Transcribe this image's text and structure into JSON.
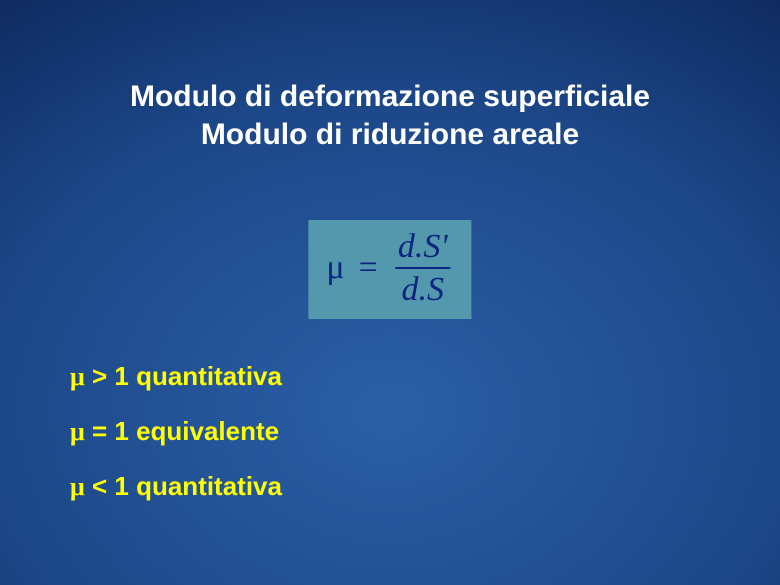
{
  "colors": {
    "background_center": "#2b5fa6",
    "background_mid": "#1c4788",
    "background_outer": "#0b2356",
    "background_edge": "#041235",
    "title_text": "#ffffff",
    "bullet_text": "#ffff00",
    "formula_bg": "#5498ad",
    "formula_text": "#0b2480"
  },
  "title": {
    "line1": "Modulo di deformazione superficiale",
    "line2": "Modulo di riduzione areale",
    "fontsize": 30
  },
  "formula": {
    "lhs_symbol": "μ",
    "equals": "=",
    "numerator": "d.S'",
    "denominator": "d.S",
    "fontsize": 34
  },
  "bullets": {
    "items": [
      {
        "symbol": "μ",
        "text": " > 1 quantitativa"
      },
      {
        "symbol": "μ",
        "text": " = 1 equivalente"
      },
      {
        "symbol": "μ",
        "text": " < 1 quantitativa"
      }
    ],
    "fontsize": 26
  }
}
